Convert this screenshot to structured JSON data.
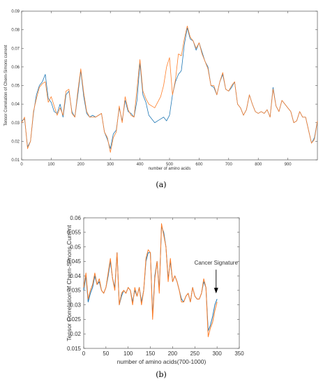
{
  "chart_data": [
    {
      "type": "line",
      "panel_label": "(a)",
      "xlabel": "number of amino acids",
      "ylabel": "Tensor Correlation of Chern-Simons current",
      "xlim": [
        0,
        1000
      ],
      "ylim": [
        0.01,
        0.09
      ],
      "xticks": [
        0,
        100,
        200,
        300,
        400,
        500,
        600,
        700,
        800,
        900
      ],
      "yticks": [
        0.01,
        0.02,
        0.03,
        0.04,
        0.05,
        0.06,
        0.07,
        0.08,
        0.09
      ],
      "grid": false,
      "series": [
        {
          "color": "#1f77b4",
          "x": [
            0,
            10,
            20,
            30,
            40,
            50,
            60,
            70,
            80,
            90,
            100,
            110,
            120,
            130,
            140,
            150,
            160,
            170,
            180,
            190,
            200,
            210,
            220,
            230,
            240,
            250,
            260,
            270,
            280,
            290,
            300,
            310,
            320,
            330,
            340,
            350,
            360,
            370,
            380,
            390,
            400,
            410,
            420,
            430,
            440,
            450,
            460,
            470,
            480,
            490,
            500,
            510,
            520,
            530,
            540,
            550,
            560,
            570,
            580,
            590,
            600,
            610,
            620,
            630,
            640,
            650,
            660,
            670,
            680,
            690,
            700,
            710,
            720,
            730,
            740,
            750,
            760,
            770,
            780,
            790,
            800,
            810,
            820,
            830,
            840,
            850,
            860,
            870,
            880,
            890,
            900,
            910,
            920,
            930,
            940,
            950,
            960,
            970,
            980,
            990,
            1000
          ],
          "y": [
            0.031,
            0.032,
            0.017,
            0.02,
            0.035,
            0.045,
            0.05,
            0.052,
            0.056,
            0.043,
            0.041,
            0.036,
            0.035,
            0.04,
            0.033,
            0.045,
            0.047,
            0.036,
            0.033,
            0.045,
            0.058,
            0.044,
            0.035,
            0.033,
            0.034,
            0.033,
            0.034,
            0.035,
            0.025,
            0.021,
            0.016,
            0.024,
            0.026,
            0.038,
            0.031,
            0.042,
            0.036,
            0.035,
            0.033,
            0.042,
            0.062,
            0.045,
            0.041,
            0.034,
            0.032,
            0.03,
            0.031,
            0.032,
            0.033,
            0.031,
            0.034,
            0.045,
            0.052,
            0.056,
            0.058,
            0.072,
            0.081,
            0.075,
            0.074,
            0.069,
            0.073,
            0.068,
            0.063,
            0.06,
            0.05,
            0.049,
            0.045,
            0.052,
            0.056,
            0.048,
            0.047,
            0.049,
            0.052,
            0.04,
            0.038,
            0.034,
            0.037,
            0.045,
            0.04,
            0.036,
            0.035,
            0.036,
            0.035,
            0.037,
            0.033,
            0.049,
            0.039,
            0.036,
            0.042,
            0.04,
            0.038,
            0.036,
            0.03,
            0.031,
            0.036,
            0.033,
            0.033,
            0.026,
            0.019,
            0.022,
            0.031
          ]
        },
        {
          "color": "#ff7f2a",
          "x": [
            0,
            10,
            20,
            30,
            40,
            50,
            60,
            70,
            80,
            90,
            100,
            110,
            120,
            130,
            140,
            150,
            160,
            170,
            180,
            190,
            200,
            210,
            220,
            230,
            240,
            250,
            260,
            270,
            280,
            290,
            300,
            310,
            320,
            330,
            340,
            350,
            360,
            370,
            380,
            390,
            400,
            410,
            420,
            430,
            440,
            450,
            460,
            470,
            480,
            490,
            500,
            510,
            520,
            530,
            540,
            550,
            560,
            570,
            580,
            590,
            600,
            610,
            620,
            630,
            640,
            650,
            660,
            670,
            680,
            690,
            700,
            710,
            720,
            730,
            740,
            750,
            760,
            770,
            780,
            790,
            800,
            810,
            820,
            830,
            840,
            850,
            860,
            870,
            880,
            890,
            900,
            910,
            920,
            930,
            940,
            950,
            960,
            970,
            980,
            990,
            1000
          ],
          "y": [
            0.03,
            0.033,
            0.016,
            0.02,
            0.036,
            0.043,
            0.049,
            0.051,
            0.052,
            0.041,
            0.044,
            0.039,
            0.034,
            0.038,
            0.034,
            0.047,
            0.048,
            0.035,
            0.033,
            0.047,
            0.059,
            0.046,
            0.036,
            0.033,
            0.033,
            0.033,
            0.034,
            0.035,
            0.025,
            0.022,
            0.014,
            0.022,
            0.025,
            0.039,
            0.03,
            0.044,
            0.037,
            0.034,
            0.033,
            0.048,
            0.064,
            0.047,
            0.043,
            0.04,
            0.039,
            0.038,
            0.041,
            0.044,
            0.05,
            0.06,
            0.065,
            0.045,
            0.053,
            0.067,
            0.066,
            0.075,
            0.082,
            0.076,
            0.074,
            0.07,
            0.073,
            0.067,
            0.063,
            0.059,
            0.05,
            0.05,
            0.045,
            0.052,
            0.057,
            0.048,
            0.047,
            0.05,
            0.052,
            0.04,
            0.038,
            0.034,
            0.037,
            0.045,
            0.04,
            0.036,
            0.035,
            0.036,
            0.035,
            0.037,
            0.033,
            0.048,
            0.039,
            0.036,
            0.042,
            0.04,
            0.038,
            0.036,
            0.03,
            0.031,
            0.036,
            0.033,
            0.033,
            0.026,
            0.019,
            0.021,
            0.031
          ]
        }
      ]
    },
    {
      "type": "line",
      "panel_label": "(b)",
      "xlabel": "number of amino acids(700-1000)",
      "ylabel": "Tensor Correlation of Chern-Simons Current",
      "xlim": [
        0,
        350
      ],
      "ylim": [
        0.015,
        0.06
      ],
      "xticks": [
        0,
        50,
        100,
        150,
        200,
        250,
        300,
        350
      ],
      "yticks": [
        0.015,
        0.02,
        0.025,
        0.03,
        0.035,
        0.04,
        0.045,
        0.05,
        0.055,
        0.06
      ],
      "grid": false,
      "annotation": {
        "text": "Cancer Signature",
        "x": 301,
        "y": 0.033
      },
      "series": [
        {
          "color": "#1f77b4",
          "x": [
            0,
            5,
            10,
            15,
            20,
            25,
            30,
            35,
            40,
            45,
            50,
            55,
            60,
            65,
            70,
            75,
            80,
            85,
            90,
            95,
            100,
            105,
            110,
            115,
            120,
            125,
            130,
            135,
            140,
            145,
            150,
            155,
            160,
            165,
            170,
            175,
            180,
            185,
            190,
            195,
            200,
            205,
            210,
            215,
            220,
            225,
            230,
            235,
            240,
            245,
            250,
            255,
            260,
            265,
            270,
            275,
            280,
            285,
            290,
            295,
            300
          ],
          "y": [
            0.035,
            0.04,
            0.031,
            0.034,
            0.036,
            0.04,
            0.037,
            0.038,
            0.035,
            0.034,
            0.036,
            0.04,
            0.045,
            0.039,
            0.036,
            0.048,
            0.03,
            0.033,
            0.035,
            0.034,
            0.036,
            0.035,
            0.031,
            0.035,
            0.033,
            0.036,
            0.031,
            0.035,
            0.045,
            0.048,
            0.048,
            0.026,
            0.04,
            0.045,
            0.035,
            0.057,
            0.055,
            0.05,
            0.039,
            0.045,
            0.038,
            0.04,
            0.038,
            0.035,
            0.032,
            0.031,
            0.033,
            0.034,
            0.031,
            0.036,
            0.033,
            0.032,
            0.032,
            0.034,
            0.038,
            0.036,
            0.021,
            0.023,
            0.026,
            0.03,
            0.032
          ]
        },
        {
          "color": "#ff7f2a",
          "x": [
            0,
            5,
            10,
            15,
            20,
            25,
            30,
            35,
            40,
            45,
            50,
            55,
            60,
            65,
            70,
            75,
            80,
            85,
            90,
            95,
            100,
            105,
            110,
            115,
            120,
            125,
            130,
            135,
            140,
            145,
            150,
            155,
            160,
            165,
            170,
            175,
            180,
            185,
            190,
            195,
            200,
            205,
            210,
            215,
            220,
            225,
            230,
            235,
            240,
            245,
            250,
            255,
            260,
            265,
            270,
            275,
            280,
            285,
            290,
            295,
            300
          ],
          "y": [
            0.036,
            0.041,
            0.032,
            0.035,
            0.037,
            0.041,
            0.037,
            0.039,
            0.035,
            0.034,
            0.036,
            0.041,
            0.046,
            0.039,
            0.035,
            0.048,
            0.03,
            0.034,
            0.035,
            0.034,
            0.036,
            0.035,
            0.03,
            0.036,
            0.033,
            0.036,
            0.03,
            0.035,
            0.046,
            0.049,
            0.048,
            0.025,
            0.039,
            0.045,
            0.034,
            0.058,
            0.054,
            0.05,
            0.038,
            0.046,
            0.038,
            0.04,
            0.038,
            0.035,
            0.031,
            0.031,
            0.033,
            0.034,
            0.031,
            0.036,
            0.033,
            0.032,
            0.032,
            0.034,
            0.039,
            0.036,
            0.019,
            0.022,
            0.024,
            0.028,
            0.031
          ]
        }
      ]
    }
  ]
}
